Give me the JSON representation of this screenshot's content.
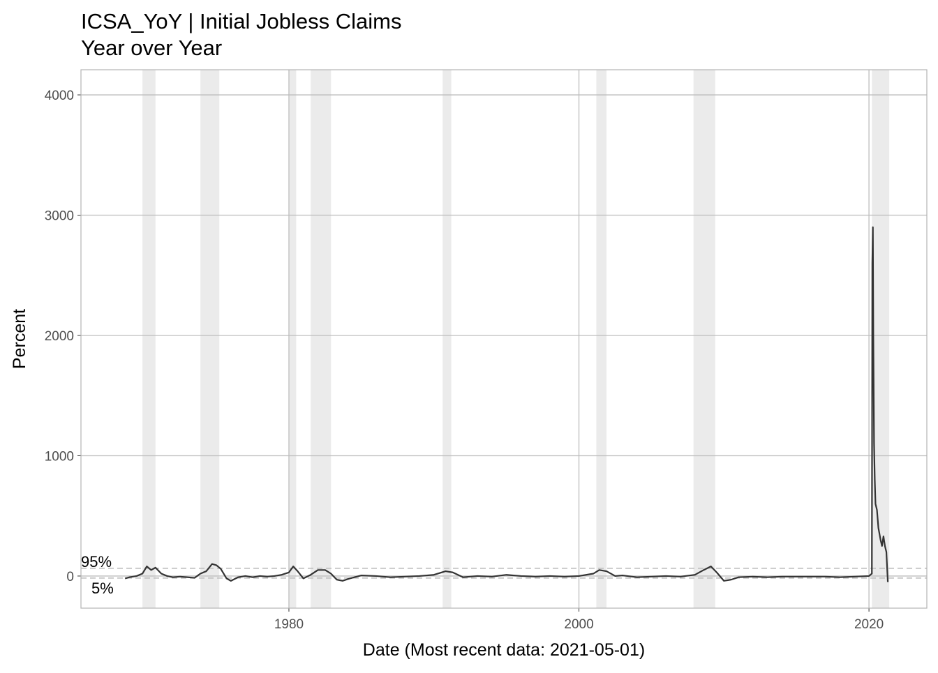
{
  "chart_data": {
    "type": "line",
    "title": "ICSA_YoY | Initial Jobless Claims",
    "subtitle": "Year over Year",
    "x_label": "Date (Most recent data: 2021-05-01)",
    "y_label": "Percent",
    "xlim": [
      1965.66,
      2023.99
    ],
    "ylim": [
      -267,
      4209
    ],
    "xticks": [
      1980,
      2000,
      2020
    ],
    "yticks": [
      0,
      1000,
      2000,
      3000,
      4000
    ],
    "grid": true,
    "recessions": [
      [
        1969.9,
        1970.8
      ],
      [
        1973.9,
        1975.2
      ],
      [
        1980.0,
        1980.5
      ],
      [
        1981.5,
        1982.9
      ],
      [
        1990.6,
        1991.2
      ],
      [
        2001.2,
        2001.9
      ],
      [
        2007.9,
        2009.4
      ],
      [
        2020.2,
        2021.4
      ]
    ],
    "reference_lines": [
      {
        "label": "95%",
        "value": 64
      },
      {
        "label": "5%",
        "value": -17
      }
    ],
    "series": [
      {
        "name": "ICSA_YoY",
        "color": "#333333",
        "x": [
          1968.7,
          1969.0,
          1969.5,
          1969.9,
          1970.2,
          1970.5,
          1970.8,
          1971.2,
          1971.6,
          1972.0,
          1972.5,
          1973.0,
          1973.5,
          1973.9,
          1974.3,
          1974.7,
          1975.0,
          1975.3,
          1975.7,
          1976.0,
          1976.5,
          1977.0,
          1977.5,
          1978.0,
          1978.5,
          1979.0,
          1979.5,
          1980.0,
          1980.3,
          1980.6,
          1981.0,
          1981.5,
          1982.0,
          1982.5,
          1982.9,
          1983.3,
          1983.7,
          1984.2,
          1985,
          1986,
          1987,
          1988,
          1989,
          1990,
          1990.8,
          1991.3,
          1992,
          1993,
          1994,
          1995,
          1996,
          1997,
          1998,
          1999,
          2000,
          2001,
          2001.4,
          2001.9,
          2002.5,
          2003,
          2004,
          2005,
          2006,
          2007,
          2008,
          2008.6,
          2009.1,
          2009.5,
          2010,
          2010.5,
          2011,
          2012,
          2013,
          2014,
          2015,
          2016,
          2017,
          2018,
          2019,
          2020.0,
          2020.2,
          2020.23,
          2020.27,
          2020.3,
          2020.35,
          2020.4,
          2020.45,
          2020.55,
          2020.65,
          2020.8,
          2020.9,
          2021.0,
          2021.1,
          2021.2,
          2021.3
        ],
        "values": [
          -20,
          -10,
          0,
          20,
          80,
          50,
          70,
          20,
          0,
          -10,
          -5,
          -10,
          -15,
          20,
          40,
          100,
          90,
          60,
          -20,
          -40,
          -10,
          0,
          -10,
          0,
          -5,
          0,
          10,
          30,
          80,
          40,
          -20,
          10,
          50,
          50,
          20,
          -30,
          -40,
          -20,
          5,
          0,
          -10,
          -5,
          0,
          10,
          40,
          30,
          -10,
          0,
          -5,
          10,
          0,
          -5,
          0,
          -5,
          0,
          20,
          50,
          40,
          0,
          5,
          -10,
          -5,
          0,
          -5,
          10,
          50,
          80,
          30,
          -40,
          -30,
          -10,
          -5,
          -10,
          -5,
          -5,
          -5,
          -5,
          -10,
          -5,
          0,
          20,
          2600,
          2900,
          2000,
          1100,
          800,
          600,
          550,
          400,
          300,
          250,
          330,
          250,
          200,
          -50
        ]
      }
    ]
  }
}
